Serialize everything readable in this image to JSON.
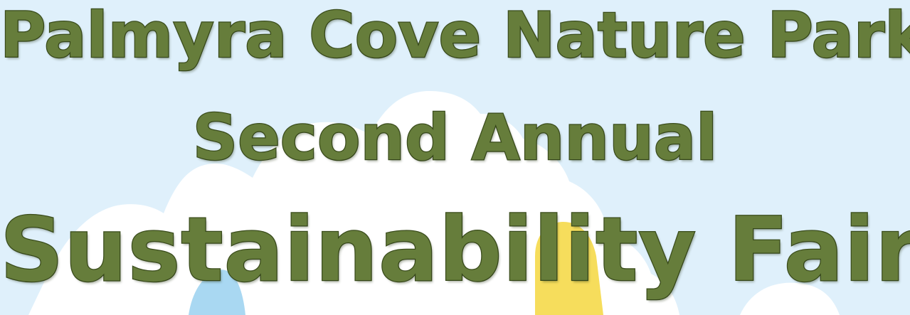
{
  "banner": {
    "line1": "Palmyra Cove Nature Park",
    "line2": "Second Annual",
    "line3": "Sustainability Fair"
  },
  "colors": {
    "sky": "#dff0fb",
    "clouds": "#ffffff",
    "text_fill": "#667d3b",
    "text_outline": "#3b4d1d",
    "blue_shape": "#a9d8f2",
    "yellow_shape": "#f6dd5c"
  }
}
